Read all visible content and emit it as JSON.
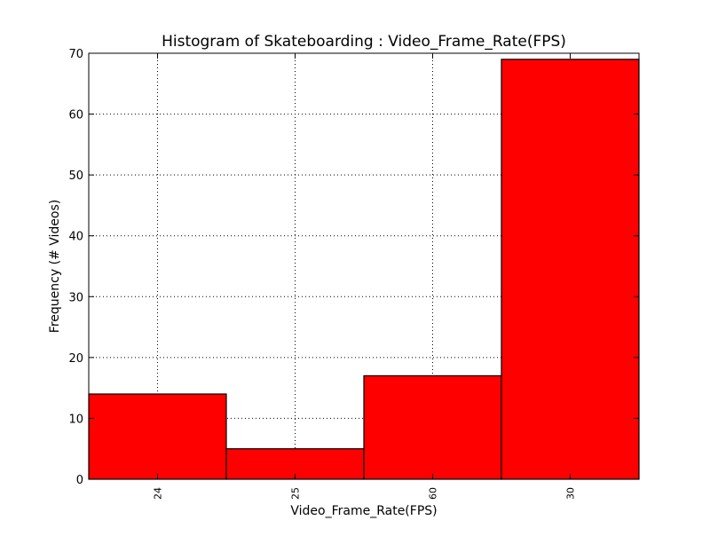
{
  "chart_data": {
    "type": "bar",
    "title": "Histogram of Skateboarding : Video_Frame_Rate(FPS)",
    "xlabel": "Video_Frame_Rate(FPS)",
    "ylabel": "Frequency (# Videos)",
    "categories": [
      "24",
      "25",
      "60",
      "30"
    ],
    "values": [
      14,
      5,
      17,
      69
    ],
    "ylim": [
      0,
      70
    ],
    "yticks": [
      "0",
      "10",
      "20",
      "30",
      "40",
      "50",
      "60",
      "70"
    ],
    "grid": true,
    "grid_style": "dotted",
    "legend": "none",
    "bar_color": "#ff0000",
    "bar_edge_color": "#000000"
  }
}
